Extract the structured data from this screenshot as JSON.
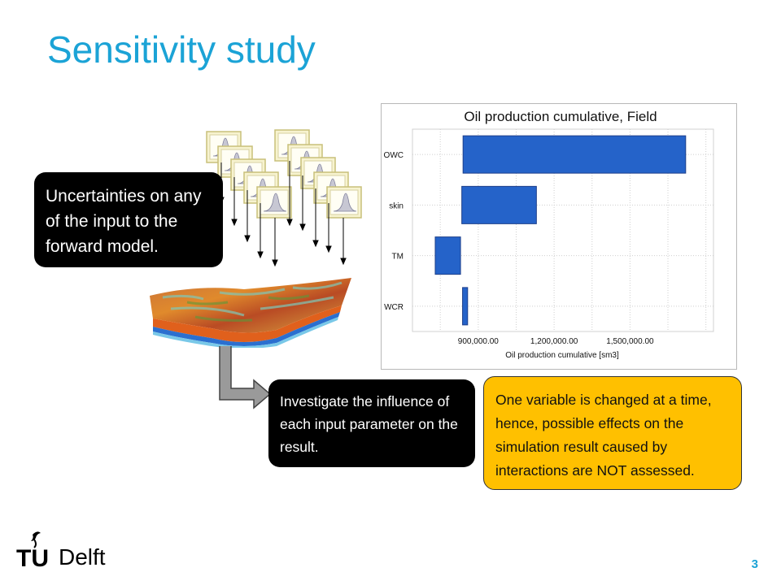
{
  "slide": {
    "title": "Sensitivity study",
    "page_number": "3"
  },
  "callouts": {
    "uncertainties": "Uncertainties on any of the input to the forward model.",
    "investigate": "Investigate  the influence of each input parameter on the result.",
    "note": "One variable is changed at a time, hence, possible effects on the simulation result caused by interactions are NOT assessed."
  },
  "logo": {
    "text": "Delft",
    "mark": "TU"
  },
  "colors": {
    "title": "#1ba3d6",
    "bar": "#2563c9",
    "note_bg": "#ffc000"
  },
  "chart_data": {
    "type": "bar",
    "orientation": "horizontal",
    "title": "Oil production cumulative, Field",
    "xlabel": "Oil production cumulative [sm3]",
    "ylabel": "",
    "categories": [
      "OWC",
      "skin",
      "TM",
      "WCR"
    ],
    "bars": [
      {
        "category": "OWC",
        "low": 840000,
        "high": 1720000
      },
      {
        "category": "skin",
        "low": 835000,
        "high": 1130000
      },
      {
        "category": "TM",
        "low": 730000,
        "high": 830000
      },
      {
        "category": "WCR",
        "low": 838000,
        "high": 858000
      }
    ],
    "xticks": [
      "900,000.00",
      "1,200,000.00",
      "1,500,000.00"
    ],
    "xtick_values": [
      900000,
      1200000,
      1500000
    ],
    "xlim": [
      640000,
      1830000
    ],
    "grid": true
  },
  "icons": {
    "pdf_cards": "probability-distribution-icon",
    "reservoir": "reservoir-model-icon",
    "flow_arrow": "down-right-arrow-icon"
  }
}
